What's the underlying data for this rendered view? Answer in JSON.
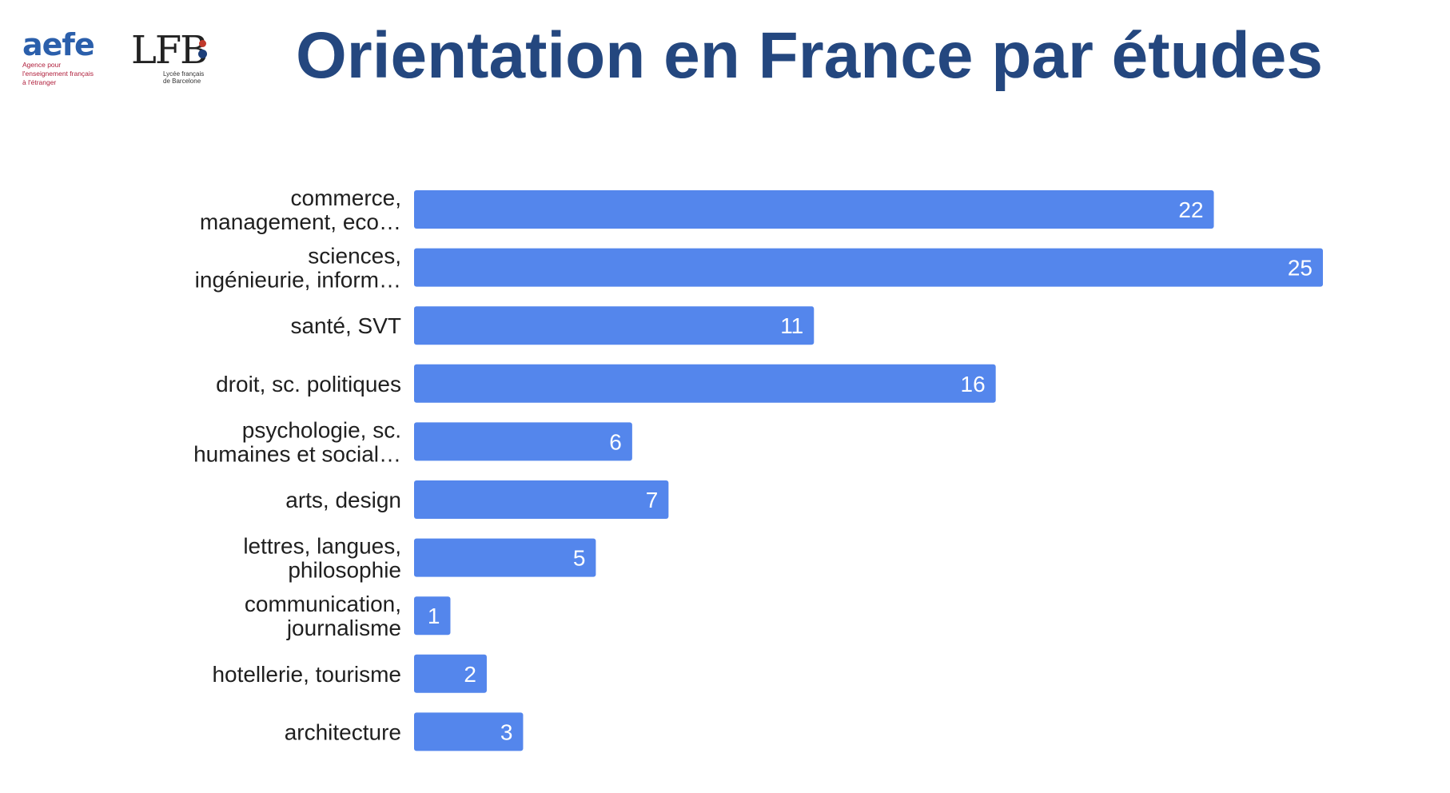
{
  "header": {
    "title": "Orientation en France par études",
    "logo_aefe": {
      "word": "aefe",
      "tagline_1": "Agence pour",
      "tagline_2": "l'enseignement français",
      "tagline_3": "à l'étranger"
    },
    "logo_lfb": {
      "mark": "LFB",
      "tagline_1": "Lycée français",
      "tagline_2": "de Barcelone"
    }
  },
  "colors": {
    "title": "#24477f",
    "bar": "#5486ec",
    "aefe_blue": "#2b5fab",
    "aefe_red": "#b01f3c"
  },
  "chart_data": {
    "type": "bar",
    "orientation": "horizontal",
    "title": "",
    "xlabel": "",
    "ylabel": "",
    "xlim": [
      0,
      25
    ],
    "grid": false,
    "legend": "none",
    "categories": [
      [
        "commerce,",
        "management, eco…"
      ],
      [
        "sciences,",
        "ingénieurie, inform…"
      ],
      [
        "santé, SVT"
      ],
      [
        "droit, sc. politiques"
      ],
      [
        "psychologie, sc.",
        "humaines et social…"
      ],
      [
        "arts, design"
      ],
      [
        "lettres, langues,",
        "philosophie"
      ],
      [
        "communication,",
        "journalisme"
      ],
      [
        "hotellerie, tourisme"
      ],
      [
        "architecture"
      ]
    ],
    "values": [
      22,
      25,
      11,
      16,
      6,
      7,
      5,
      1,
      2,
      3
    ],
    "data_labels": [
      "22",
      "25",
      "11",
      "16",
      "6",
      "7",
      "5",
      "1",
      "2",
      "3"
    ]
  }
}
